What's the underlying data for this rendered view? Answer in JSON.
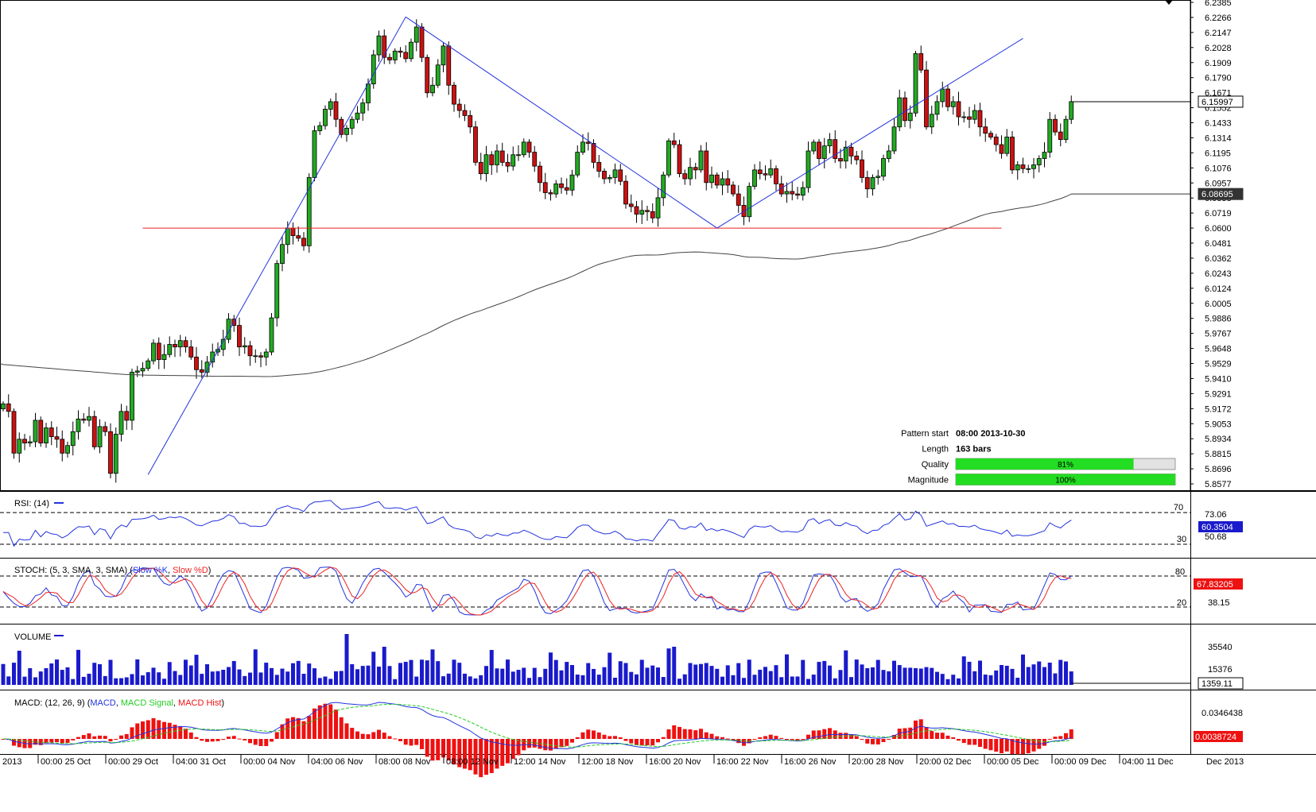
{
  "chart_data": {
    "type": "candlestick",
    "symbol_partial": "2013",
    "price_axis_ticks": [
      "6.2385",
      "6.2266",
      "6.2147",
      "6.2028",
      "6.1909",
      "6.1790",
      "6.1671",
      "6.1552",
      "6.1433",
      "6.1314",
      "6.1195",
      "6.1076",
      "6.0957",
      "6.0838",
      "6.0719",
      "6.0600",
      "6.0481",
      "6.0362",
      "6.0243",
      "6.0124",
      "6.0005",
      "5.9886",
      "5.9767",
      "5.9648",
      "5.9529",
      "5.9410",
      "5.9291",
      "5.9172",
      "5.9053",
      "5.8934",
      "5.8815",
      "5.8696",
      "5.8577"
    ],
    "price_range": [
      5.8577,
      6.2385
    ],
    "last_price_label": "6.15997",
    "ma_label": "6.08695",
    "support_level": 6.06,
    "pattern_lines": [
      {
        "from": {
          "bar": 0,
          "price": 5.865
        },
        "to": {
          "bar": 48,
          "price": 6.227
        }
      },
      {
        "from": {
          "bar": 48,
          "price": 6.227
        },
        "to": {
          "bar": 106,
          "price": 6.06
        }
      },
      {
        "from": {
          "bar": 106,
          "price": 6.06
        },
        "to": {
          "bar": 163,
          "price": 6.21
        }
      }
    ],
    "time_labels": [
      "2013",
      "00:00 25 Oct",
      "00:00 29 Oct",
      "04:00 31 Oct",
      "00:00 04 Nov",
      "04:00 06 Nov",
      "08:00 08 Nov",
      "08:00 12 Nov",
      "12:00 14 Nov",
      "12:00 18 Nov",
      "16:00 20 Nov",
      "16:00 22 Nov",
      "16:00 26 Nov",
      "20:00 28 Nov",
      "20:00 02 Dec",
      "00:00 05 Dec",
      "00:00 09 Dec",
      "04:00 11 Dec",
      "Dec 2013"
    ],
    "closes": [
      5.921,
      5.915,
      5.882,
      5.893,
      5.89,
      5.891,
      5.908,
      5.89,
      5.902,
      5.895,
      5.893,
      5.882,
      5.888,
      5.899,
      5.909,
      5.908,
      5.911,
      5.887,
      5.903,
      5.899,
      5.866,
      5.897,
      5.915,
      5.908,
      5.946,
      5.947,
      5.949,
      5.955,
      5.969,
      5.956,
      5.96,
      5.968,
      5.966,
      5.971,
      5.966,
      5.958,
      5.948,
      5.946,
      5.954,
      5.962,
      5.964,
      5.972,
      5.988,
      5.983,
      5.966,
      5.967,
      5.959,
      5.959,
      5.958,
      5.962,
      5.989,
      6.032,
      6.047,
      6.06,
      6.054,
      6.052,
      6.046,
      6.1,
      6.137,
      6.141,
      6.154,
      6.16,
      6.146,
      6.134,
      6.139,
      6.146,
      6.151,
      6.159,
      6.174,
      6.197,
      6.212,
      6.195,
      6.193,
      6.2,
      6.199,
      6.194,
      6.207,
      6.219,
      6.195,
      6.167,
      6.173,
      6.189,
      6.204,
      6.173,
      6.158,
      6.153,
      6.149,
      6.14,
      6.112,
      6.103,
      6.118,
      6.11,
      6.121,
      6.112,
      6.109,
      6.118,
      6.118,
      6.128,
      6.12,
      6.109,
      6.096,
      6.088,
      6.087,
      6.095,
      6.092,
      6.09,
      6.102,
      6.12,
      6.128,
      6.127,
      6.112,
      6.105,
      6.099,
      6.1,
      6.106,
      6.097,
      6.079,
      6.077,
      6.071,
      6.074,
      6.073,
      6.068,
      6.084,
      6.102,
      6.129,
      6.126,
      6.103,
      6.099,
      6.108,
      6.106,
      6.121,
      6.096,
      6.102,
      6.094,
      6.099,
      6.094,
      6.087,
      6.078,
      6.069,
      6.093,
      6.106,
      6.103,
      6.102,
      6.107,
      6.095,
      6.087,
      6.089,
      6.087,
      6.086,
      6.092,
      6.121,
      6.128,
      6.115,
      6.125,
      6.13,
      6.115,
      6.113,
      6.124,
      6.117,
      6.114,
      6.1,
      6.091,
      6.1,
      6.101,
      6.115,
      6.121,
      6.14,
      6.163,
      6.145,
      6.151,
      6.198,
      6.185,
      6.14,
      6.15,
      6.16,
      6.17,
      6.156,
      6.16,
      6.148,
      6.148,
      6.146,
      6.153,
      6.14,
      6.135,
      6.132,
      6.126,
      6.119,
      6.132,
      6.106,
      6.11,
      6.107,
      6.107,
      6.11,
      6.115,
      6.12,
      6.146,
      6.136,
      6.13,
      6.146,
      6.16
    ]
  },
  "info_box": {
    "pattern_start_label": "Pattern start",
    "pattern_start_value": "08:00 2013-10-30",
    "length_label": "Length",
    "length_value": "163 bars",
    "quality_label": "Quality",
    "quality_value": "81%",
    "quality_fraction": 0.81,
    "magnitude_label": "Magnitude",
    "magnitude_value": "100%",
    "magnitude_fraction": 1.0
  },
  "rsi": {
    "title": "RSI: (14)",
    "levels": [
      "70",
      "30"
    ],
    "ticks": [
      "73.06",
      "50.68"
    ],
    "last_label": "60.3504"
  },
  "stoch": {
    "title": "STOCH: (5, 3, SMA, 3, SMA)",
    "series_k": "Slow %K",
    "series_d": "Slow %D",
    "levels": [
      "80",
      "20"
    ],
    "ticks": [
      "38.15"
    ],
    "last_label": "67.83205"
  },
  "volume": {
    "title": "VOLUME",
    "ticks": [
      "35540",
      "15376"
    ],
    "last_label": "1359.11"
  },
  "macd": {
    "title": "MACD: (12, 26, 9)",
    "series_macd": "MACD",
    "series_signal": "MACD Signal",
    "series_hist": "MACD Hist",
    "ticks": [
      "0.0346438"
    ],
    "last_label": "0.0038724"
  },
  "colors": {
    "bull": "#22aa22",
    "bear": "#cc1111",
    "pattern": "#2233dd",
    "support": "#ee2222",
    "ma": "#444444",
    "rsi": "#2233dd",
    "stoch_k": "#2233dd",
    "stoch_d": "#ee2222",
    "volume": "#1a1acc",
    "macd": "#2233dd",
    "signal": "#22cc22",
    "hist": "#ee1111",
    "quality_fill": "#22dd22",
    "tag_blue": "#1a1acc",
    "tag_dark": "#333333",
    "tag_red": "#ee1111"
  }
}
